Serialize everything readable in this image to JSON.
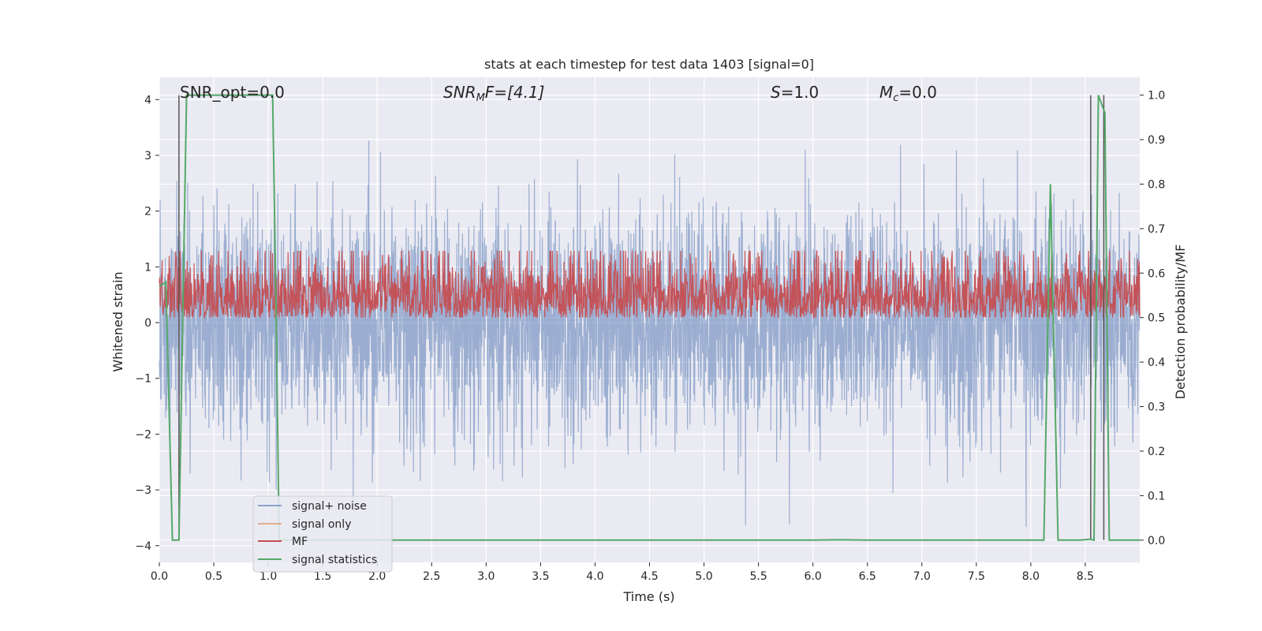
{
  "chart_data": {
    "type": "line",
    "title": "stats at each timestep for test data 1403 [signal=0]",
    "xlabel": "Time (s)",
    "ylabel": "Whitened strain",
    "ylabel_right": "Detection probability/MF",
    "xlim": [
      0.0,
      9.0
    ],
    "ylim": [
      -4.3,
      4.4
    ],
    "ylim_right": [
      -0.05,
      1.04
    ],
    "xticks": [
      "0.0",
      "0.5",
      "1.0",
      "1.5",
      "2.0",
      "2.5",
      "3.0",
      "3.5",
      "4.0",
      "4.5",
      "5.0",
      "5.5",
      "6.0",
      "6.5",
      "7.0",
      "7.5",
      "8.0",
      "8.5"
    ],
    "xtick_values": [
      0.0,
      0.5,
      1.0,
      1.5,
      2.0,
      2.5,
      3.0,
      3.5,
      4.0,
      4.5,
      5.0,
      5.5,
      6.0,
      6.5,
      7.0,
      7.5,
      8.0,
      8.5
    ],
    "yticks": [
      "−4",
      "−3",
      "−2",
      "−1",
      "0",
      "1",
      "2",
      "3",
      "4"
    ],
    "ytick_values": [
      -4,
      -3,
      -2,
      -1,
      0,
      1,
      2,
      3,
      4
    ],
    "yticks_right": [
      "0.0",
      "0.1",
      "0.2",
      "0.3",
      "0.4",
      "0.5",
      "0.6",
      "0.7",
      "0.8",
      "0.9",
      "1.0"
    ],
    "ytick_right_values": [
      0.0,
      0.1,
      0.2,
      0.3,
      0.4,
      0.5,
      0.6,
      0.7,
      0.8,
      0.9,
      1.0
    ],
    "grid": true,
    "legend_position": "lower-left",
    "annotations": {
      "snr_opt": "SNR_opt=0.0",
      "snr_mf_italic": "SNR",
      "snr_mf_sub": "M",
      "snr_mf_rest": "F=[4.1]",
      "s_italic": "S",
      "s_rest": "=1.0",
      "mc_italic": "M",
      "mc_sub": "c",
      "mc_rest": "=0.0"
    },
    "series": [
      {
        "name": "signal+ noise",
        "color": "#4c72b0",
        "axis": "left",
        "noise_std": 1.0
      },
      {
        "name": "signal only",
        "color": "#dd8452",
        "axis": "left",
        "values": []
      },
      {
        "name": "MF",
        "color": "#c44e52",
        "axis": "right",
        "noise_center": 0.55,
        "noise_std": 0.06
      },
      {
        "name": "signal statistics",
        "color": "#55a868",
        "axis": "right",
        "x": [
          0.0,
          0.06,
          0.12,
          0.18,
          0.25,
          0.3,
          0.4,
          0.6,
          0.8,
          1.0,
          1.04,
          1.07,
          1.1,
          1.15,
          2.0,
          3.0,
          4.0,
          5.0,
          6.0,
          6.25,
          6.5,
          7.0,
          8.0,
          8.12,
          8.18,
          8.25,
          8.3,
          8.45,
          8.55,
          8.58,
          8.62,
          8.68,
          8.72,
          8.8,
          9.0
        ],
        "values": [
          0.57,
          0.58,
          0.0,
          0.0,
          1.0,
          1.0,
          1.0,
          1.0,
          1.0,
          1.0,
          1.0,
          0.55,
          0.0,
          0.0,
          0.0,
          0.0,
          0.0,
          0.0,
          0.0,
          0.001,
          0.0,
          0.0,
          0.0,
          0.0,
          0.8,
          0.0,
          0.0,
          0.0,
          0.002,
          0.0,
          1.0,
          0.96,
          0.0,
          0.0,
          0.0
        ]
      }
    ],
    "vertical_lines_x": [
      0.18,
      8.55,
      8.67
    ],
    "vertical_line_color": "#555555"
  }
}
